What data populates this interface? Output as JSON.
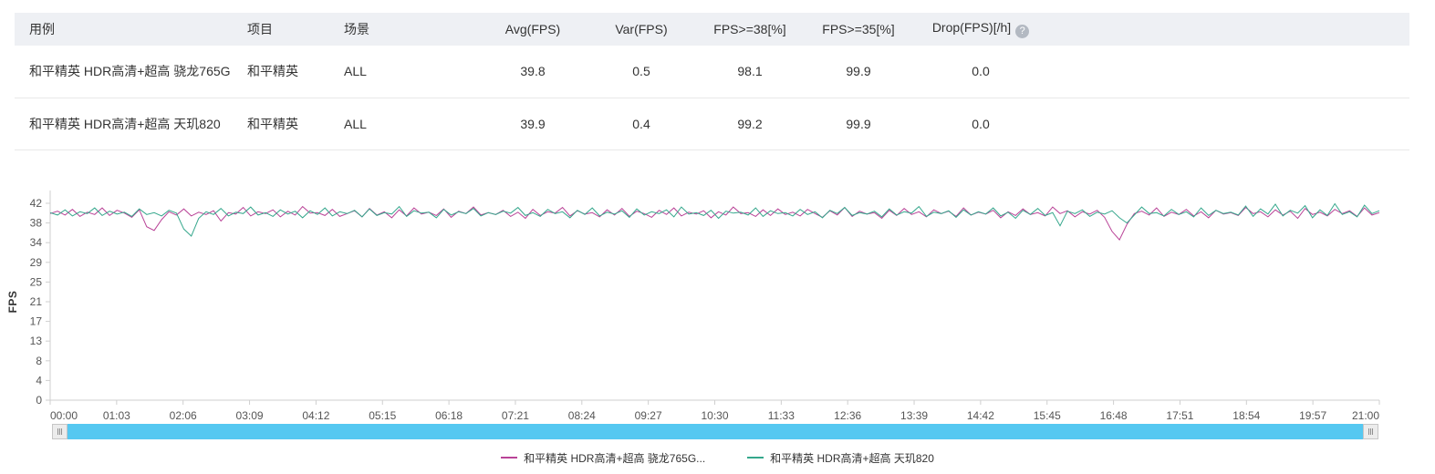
{
  "colors": {
    "header_bg": "#eef0f4",
    "row_border": "#e9e9e9",
    "scrollbar_blue": "#55c8f1",
    "axis_gray": "#cfcfcf",
    "tick_text": "#555555"
  },
  "table": {
    "headers": [
      "用例",
      "项目",
      "场景",
      "Avg(FPS)",
      "Var(FPS)",
      "FPS>=38[%]",
      "FPS>=35[%]",
      "Drop(FPS)[/h]"
    ],
    "help_icon": "?",
    "rows": [
      {
        "cells": [
          "和平精英 HDR高清+超高 骁龙765G",
          "和平精英",
          "ALL",
          "39.8",
          "0.5",
          "98.1",
          "99.9",
          "0.0"
        ]
      },
      {
        "cells": [
          "和平精英 HDR高清+超高 天玑820",
          "和平精英",
          "ALL",
          "39.9",
          "0.4",
          "99.2",
          "99.9",
          "0.0"
        ]
      }
    ]
  },
  "chart_data": {
    "type": "line",
    "title": "",
    "xlabel": "",
    "ylabel": "FPS",
    "ylim": [
      0,
      42
    ],
    "grid": false,
    "legend_position": "bottom",
    "y_ticks": [
      "0",
      "4",
      "8",
      "13",
      "17",
      "21",
      "25",
      "29",
      "34",
      "38",
      "42"
    ],
    "x_ticks": [
      "00:00",
      "01:03",
      "02:06",
      "03:09",
      "04:12",
      "05:15",
      "06:18",
      "07:21",
      "08:24",
      "09:27",
      "10:30",
      "11:33",
      "12:36",
      "13:39",
      "14:42",
      "15:45",
      "16:48",
      "17:51",
      "18:54",
      "19:57",
      "21:00"
    ],
    "x_range_seconds": [
      0,
      1260
    ],
    "series": [
      {
        "name": "和平精英 HDR高清+超高 骁龙765G",
        "legend_label": "和平精英 HDR高清+超高 骁龙765G...",
        "color": "#b94397",
        "avg_fps": 39.8,
        "values": [
          39.8,
          40.3,
          39.5,
          40.7,
          39.2,
          40.1,
          39.6,
          41.0,
          39.4,
          40.5,
          39.9,
          39.0,
          40.6,
          37.0,
          36.2,
          38.5,
          40.2,
          39.5,
          40.8,
          39.3,
          40.1,
          39.6,
          40.4,
          38.2,
          40.0,
          39.7,
          41.1,
          39.3,
          40.2,
          39.8,
          40.6,
          39.1,
          40.3,
          39.5,
          41.3,
          39.9,
          40.0,
          39.4,
          40.7,
          39.2,
          39.8,
          40.4,
          39.1,
          40.9,
          39.5,
          40.2,
          38.9,
          40.6,
          39.3,
          41.0,
          39.7,
          40.1,
          39.4,
          40.8,
          39.0,
          40.3,
          39.8,
          41.2,
          39.5,
          40.0,
          39.6,
          40.5,
          39.2,
          40.1,
          38.8,
          40.7,
          39.4,
          40.2,
          39.9,
          41.1,
          39.3,
          40.4,
          39.7,
          40.0,
          39.1,
          40.6,
          39.5,
          40.9,
          39.2,
          40.3,
          39.8,
          39.0,
          40.5,
          39.6,
          41.0,
          39.3,
          40.1,
          39.7,
          40.4,
          38.9,
          40.2,
          39.5,
          41.2,
          39.8,
          40.0,
          39.2,
          40.6,
          39.4,
          40.8,
          39.6,
          40.1,
          39.3,
          40.7,
          39.8,
          39.0,
          40.4,
          39.5,
          41.1,
          39.2,
          40.3,
          39.7,
          40.0,
          38.8,
          40.5,
          39.4,
          40.9,
          39.6,
          40.2,
          39.1,
          40.6,
          39.8,
          40.3,
          39.2,
          41.0,
          39.5,
          40.1,
          39.7,
          40.5,
          38.9,
          40.2,
          39.4,
          40.8,
          39.6,
          40.0,
          39.3,
          41.2,
          39.8,
          40.4,
          39.1,
          40.2,
          39.7,
          40.5,
          39.0,
          36.0,
          34.2,
          37.5,
          39.8,
          40.3,
          39.5,
          41.0,
          39.2,
          40.1,
          39.6,
          40.7,
          39.3,
          40.2,
          38.9,
          40.5,
          39.7,
          40.0,
          39.4,
          41.1,
          39.8,
          40.2,
          39.1,
          40.6,
          39.5,
          40.3,
          38.8,
          40.9,
          39.6,
          40.1,
          39.3,
          40.7,
          39.8,
          40.4,
          39.2,
          41.0,
          39.5,
          40.0
        ]
      },
      {
        "name": "和平精英 HDR高清+超高 天玑820",
        "legend_label": "和平精英 HDR高清+超高 天玑820",
        "color": "#35a78c",
        "avg_fps": 39.9,
        "values": [
          40.0,
          39.5,
          40.6,
          39.3,
          40.2,
          39.8,
          41.0,
          39.4,
          40.3,
          39.7,
          40.1,
          39.2,
          40.8,
          39.6,
          40.0,
          39.3,
          40.5,
          39.9,
          36.5,
          35.0,
          38.8,
          40.2,
          39.6,
          40.9,
          39.3,
          40.1,
          39.8,
          41.2,
          39.5,
          40.0,
          39.2,
          40.6,
          39.7,
          40.3,
          38.9,
          40.4,
          39.6,
          41.0,
          39.3,
          40.2,
          39.8,
          40.5,
          39.1,
          40.8,
          39.4,
          40.0,
          39.7,
          41.3,
          39.2,
          40.4,
          39.9,
          40.1,
          38.9,
          40.7,
          39.5,
          40.2,
          39.8,
          40.9,
          39.3,
          40.0,
          39.6,
          40.3,
          39.9,
          41.1,
          39.4,
          40.0,
          39.2,
          40.7,
          39.8,
          40.2,
          38.9,
          40.5,
          39.6,
          41.0,
          39.3,
          40.1,
          39.7,
          40.4,
          39.0,
          40.8,
          39.5,
          40.2,
          39.8,
          40.6,
          39.1,
          41.2,
          39.7,
          40.0,
          39.4,
          40.5,
          38.8,
          40.3,
          39.9,
          40.1,
          39.5,
          41.0,
          39.2,
          40.4,
          39.8,
          40.0,
          39.3,
          40.7,
          39.6,
          40.2,
          38.9,
          40.5,
          39.8,
          41.1,
          39.4,
          40.0,
          39.7,
          40.3,
          39.1,
          40.8,
          39.5,
          40.2,
          39.9,
          41.3,
          39.2,
          40.1,
          39.8,
          40.4,
          39.0,
          40.6,
          39.5,
          40.2,
          39.7,
          41.0,
          39.3,
          40.1,
          38.8,
          40.5,
          39.6,
          40.9,
          39.4,
          40.0,
          37.2,
          40.3,
          39.8,
          40.6,
          39.2,
          40.1,
          39.7,
          40.4,
          38.9,
          37.8,
          39.5,
          41.2,
          39.8,
          40.0,
          39.3,
          40.7,
          39.6,
          40.2,
          39.1,
          41.0,
          39.4,
          40.5,
          39.8,
          40.1,
          39.5,
          41.4,
          39.2,
          40.8,
          39.7,
          41.8,
          39.3,
          40.5,
          39.9,
          41.5,
          38.9,
          40.6,
          39.4,
          41.9,
          39.6,
          40.2,
          39.1,
          41.6,
          39.8,
          40.4
        ]
      }
    ]
  }
}
